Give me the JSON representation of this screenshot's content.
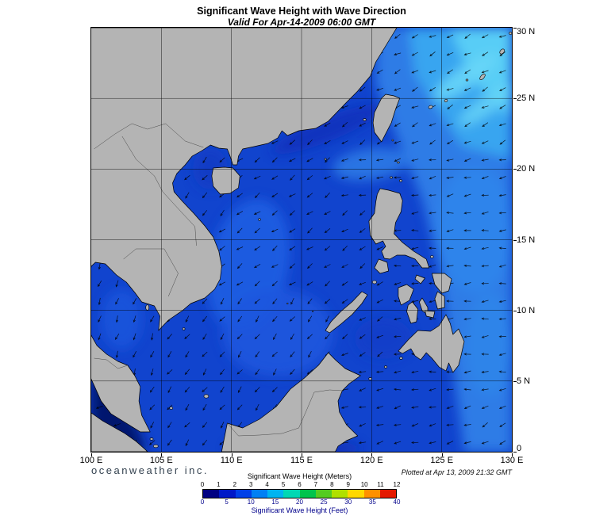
{
  "title": "Significant Wave Height with Wave Direction",
  "subtitle": "Valid For Apr-14-2009 06:00 GMT",
  "branding": "oceanweather inc.",
  "plotted_at": "Plotted at Apr 13, 2009 21:32 GMT",
  "axes": {
    "x_ticks": [
      "100 E",
      "105 E",
      "110 E",
      "115 E",
      "120 E",
      "125 E",
      "130 E"
    ],
    "y_ticks": [
      "30 N",
      "25 N",
      "20 N",
      "15 N",
      "10 N",
      "5 N",
      "0"
    ]
  },
  "legend": {
    "meters_label": "Significant Wave Height (Meters)",
    "meters_ticks": [
      "0",
      "1",
      "2",
      "3",
      "4",
      "5",
      "6",
      "7",
      "8",
      "9",
      "10",
      "11",
      "12"
    ],
    "feet_label": "Significant Wave Height (Feet)",
    "feet_ticks": [
      "0",
      "5",
      "10",
      "15",
      "20",
      "25",
      "30",
      "35",
      "40"
    ],
    "colors": [
      "#000082",
      "#0018c8",
      "#0040e8",
      "#0080f4",
      "#00b4f0",
      "#00d8b4",
      "#00c44c",
      "#54cc20",
      "#b0e000",
      "#ffd800",
      "#ff9000",
      "#e41800"
    ]
  },
  "map": {
    "colors": {
      "ocean": "#1144ce",
      "land": "#b4b4b4",
      "coast": "#000000",
      "border": "#4a4a4a"
    },
    "shading": [
      {
        "p": "360,0 530,0 530,535 470,535 452,400 438,300 418,220 390,150 358,70",
        "c": "#2e7ce6"
      },
      {
        "p": "400,0 530,0 530,165 468,150 408,60",
        "c": "#38a5f0"
      },
      {
        "p": "452,0 530,0 530,115 478,62",
        "c": "#58cdf6"
      },
      {
        "e": [
          472,
          62,
          48,
          13,
          -35
        ],
        "c": "#68d6f8",
        "o": 0.9
      },
      {
        "e": [
          498,
          98,
          42,
          11,
          -35
        ],
        "c": "#68d6f8",
        "o": 0.8
      },
      {
        "e": [
          352,
          172,
          48,
          20,
          -8
        ],
        "c": "#2d7ce6",
        "o": 0.85
      },
      {
        "e": [
          298,
          128,
          75,
          15,
          -22
        ],
        "c": "#0b2fb8",
        "o": 0.75
      },
      {
        "e": [
          150,
          178,
          22,
          26,
          0
        ],
        "c": "#0d35c0",
        "o": 0.6
      },
      {
        "e": [
          198,
          300,
          50,
          85,
          12
        ],
        "c": "#1e5ee2",
        "o": 0.9
      },
      {
        "e": [
          235,
          385,
          70,
          55,
          0
        ],
        "c": "#1c57de",
        "o": 0.85
      },
      {
        "e": [
          38,
          368,
          26,
          38,
          0
        ],
        "c": "#1d5ae0",
        "o": 0.7
      },
      {
        "p": "0,438 22,452 55,498 70,535 0,535",
        "c": "#03126e"
      },
      {
        "e": [
          255,
          531,
          85,
          13,
          0
        ],
        "c": "#0a2cb0",
        "o": 0.65
      },
      {
        "e": [
          368,
          392,
          36,
          26,
          0
        ],
        "c": "#0d38c4",
        "o": 0.55
      },
      {
        "e": [
          502,
          400,
          30,
          65,
          0
        ],
        "c": "#2f86ea",
        "o": 0.8
      },
      {
        "e": [
          484,
          255,
          48,
          80,
          0
        ],
        "c": "#3188ec",
        "o": 0.7
      }
    ],
    "arrows": {
      "step": 1.25,
      "len": 8.5,
      "head": 3,
      "default_angle": 210,
      "regions": [
        {
          "b": [
            100,
            5.5,
            104.6,
            13.8
          ],
          "a": 250
        },
        {
          "b": [
            104.6,
            16.5,
            110.5,
            22
          ],
          "a": 228
        },
        {
          "b": [
            120,
            21.5,
            130,
            30
          ],
          "a": 207
        },
        {
          "b": [
            117,
            18,
            130,
            21.5
          ],
          "a": 193
        },
        {
          "b": [
            121.5,
            4,
            130,
            18
          ],
          "a": 186
        },
        {
          "b": [
            117,
            6,
            123,
            12
          ],
          "a": 212
        },
        {
          "b": [
            116,
            0,
            127,
            6
          ],
          "a": 194
        },
        {
          "b": [
            104,
            11,
            121.5,
            23
          ],
          "a": 216
        },
        {
          "b": [
            102,
            0,
            118,
            11
          ],
          "a": 233
        }
      ]
    },
    "land": [
      "0,0 385,0 371,23 358.7,43 351.6,61 335.7,80 319.8,96 298.6,118 282.7,127 261.5,130 247.3,136 240.3,130 235,139 222.6,146 205,150 190.8,153 185.5,162 183.8,173 178.5,173 174.9,162 171.4,153 160.8,152 150.2,148 139.6,155 127.2,162 118.4,173 107.8,184 102.5,196 104.3,207 114.8,219 129,234 143.1,250 153.7,264 160.8,282 164.3,301 162.5,317 155.5,330 143.1,341 125.4,348 114.8,357 97.2,369 84.8,382 86.6,364 79.5,351 63.6,346 54.8,334 44.2,321 31.8,312 17.7,298 5.3,296 0,301 -3.5,321 -8.8,346 -12.4,367 -1.8,385 7.1,401 19.4,412 33.6,421 45.9,426 54.8,439 61.8,453 60.1,471 63.6,489 74.2,510 61.8,510 44.2,499 24.7,487 12.4,471 3.5,451 -7.1,428 -35,410 -35,0",
      "153.7,177 167.8,176 178.5,177 187.3,187 185.5,202 174.9,209 162.5,210 153.7,200 151.9,187",
      "371,84 381.6,86 388.7,89 383.4,103 378.1,120 369.3,137 365.8,144 356.9,132 355.1,120 356.9,107 365.8,89",
      "364,203 374.6,205 388.7,209 392.2,218 390.4,232 383.4,246 381.6,260 392.2,271 406.3,282 422.2,292 425.8,303 416.9,303 408.1,292 395.7,287 385.1,287 376.3,292 369.3,291 365.8,282 371,276 367.5,269 358.7,273 351.6,262 349.9,244 356.9,234 358.7,219 360.4,210",
      "362.2,292 372.8,296 374.6,307 364,310 356.9,303",
      "300.3,385 314.5,374 328.6,362 341,348 348.1,337 341,333 328.6,346 314.5,358 302.1,371 295.1,382",
      "386.9,328 397.5,324 406.3,330 401,344 390.4,350 386.9,339",
      "404.6,346 411.6,355 409.8,371 402.8,373 397.5,358 399.3,350",
      "417,341 424,353 424,362 417,357 413.4,346",
      "420.5,357 432.9,358 431.1,366 422.3,364",
      "429.3,310 445.2,310 454,317 450.5,332 441.7,335 432.9,324",
      "436.4,333 445.2,339 445.2,353 436.4,355 432.9,342",
      "409.9,312 420.5,316 415.2,323 408.1,317",
      "386.9,408 399.3,394 411.6,382 427.6,383 438.2,376 447,362 452.3,373 455.8,387 462.9,380 470,396 466.4,412 462.9,426 455.8,435 450.5,423 447,433 438.2,428 429.3,417 422.2,410 415.2,419 408.1,414 402.8,405 392.2,411",
      "164.3,535 169.6,508 171.4,499 190.8,505 212,494 233.2,478 250.9,456 268.6,442 286.3,426 298.7,410 307.5,419 319.9,430 339.3,439 325.2,449 316.3,458 311,471 312.7,485 321.6,501 335.7,515 321.6,521 311,528 307.5,535",
      "0,486 14.1,496 28.3,504 42.4,512 56.5,522 68.9,533 70.7,535 0,535"
    ],
    "islands": [
      [
        70.7,
        353,
        2,
        3.5,
        0
      ],
      [
        116.6,
        380,
        1.5,
        1.5,
        0
      ],
      [
        144.9,
        465,
        3,
        2.2,
        0
      ],
      [
        100.7,
        480,
        2,
        1.5,
        0
      ],
      [
        81.3,
        528,
        3,
        1.8,
        0
      ],
      [
        76,
        519,
        2,
        1.4,
        0
      ],
      [
        212,
        242,
        1.3,
        1.3,
        0
      ],
      [
        295.1,
        166,
        1.2,
        1.2,
        0
      ],
      [
        344.5,
        116,
        1.8,
        1.4,
        0
      ],
      [
        378,
        189,
        1.5,
        1.2,
        0
      ],
      [
        390,
        193,
        1.7,
        1.3,
        0
      ],
      [
        386.9,
        170,
        1.4,
        1.1,
        0
      ],
      [
        427.6,
        100,
        2.6,
        1.8,
        -20
      ],
      [
        447,
        92,
        2,
        1.6,
        -20
      ],
      [
        473.5,
        66,
        1.4,
        1.2,
        0
      ],
      [
        493,
        62,
        2.2,
        4.5,
        40
      ],
      [
        517.7,
        30,
        2.4,
        3.6,
        40
      ],
      [
        528.3,
        7,
        1.6,
        1.6,
        0
      ],
      [
        356.9,
        321,
        2.6,
        2,
        0
      ],
      [
        390.4,
        417,
        1.9,
        1.4,
        0
      ],
      [
        371,
        428,
        1.7,
        1.3,
        0
      ],
      [
        351.6,
        443,
        1.9,
        1.4,
        0
      ],
      [
        429.3,
        289,
        1.9,
        1.5,
        0
      ],
      [
        247.3,
        348,
        0.8,
        0.8,
        0
      ],
      [
        279.2,
        358,
        0.7,
        0.7,
        0
      ],
      [
        379.9,
        142,
        1,
        1,
        0
      ]
    ],
    "borders": [
      "141.4,151 118.4,143 93.7,121 70.7,128 51.2,121 30,134 3.5,153",
      "38.9,137 56.5,166 79.5,187 90.1,207 114.8,234 130.7,251 132.5,275",
      "40.6,292 56.5,279 91.9,279 109.5,310 97.2,339",
      "3.5,417 19.4,419 33.6,430 45.9,426",
      "171.4,499 185.5,515 212,514 240.3,512 261.5,505 270.3,485 280.9,460 300.3,457 316.3,458"
    ]
  }
}
